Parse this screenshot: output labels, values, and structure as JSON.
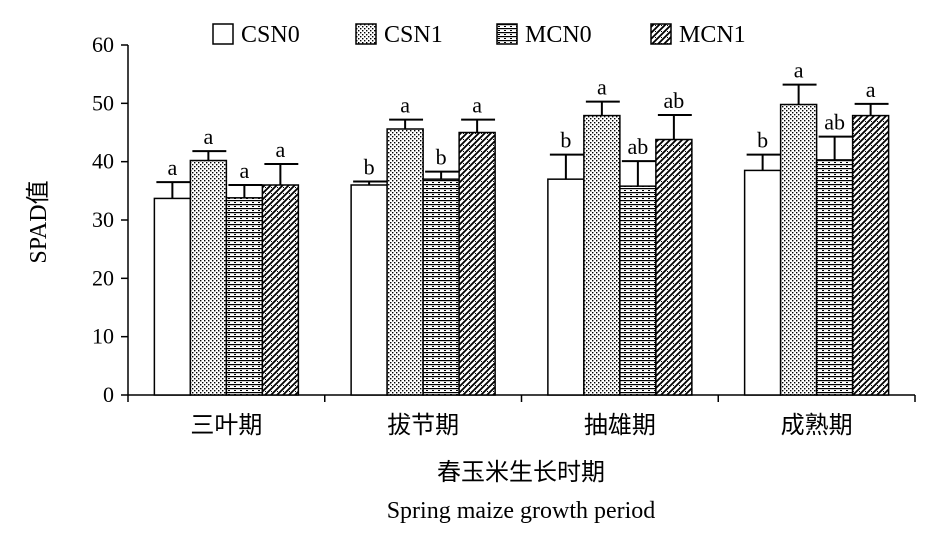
{
  "chart_data": {
    "type": "bar",
    "title": "",
    "ylabel": "SPAD值",
    "xlabel_cn": "春玉米生长时期",
    "xlabel_en": "Spring maize growth period",
    "ylim": [
      0,
      60
    ],
    "yticks": [
      0,
      10,
      20,
      30,
      40,
      50,
      60
    ],
    "categories": [
      "三叶期",
      "拔节期",
      "抽雄期",
      "成熟期"
    ],
    "legend_position": "top",
    "series": [
      {
        "name": "CSN0",
        "pattern": "plain",
        "values": [
          33.7,
          36.0,
          37.0,
          38.5
        ],
        "errors": [
          2.8,
          0.6,
          4.2,
          2.7
        ],
        "labels": [
          "a",
          "b",
          "b",
          "b"
        ]
      },
      {
        "name": "CSN1",
        "pattern": "dots",
        "values": [
          40.2,
          45.6,
          47.9,
          49.8
        ],
        "errors": [
          1.6,
          1.6,
          2.4,
          3.4
        ],
        "labels": [
          "a",
          "a",
          "a",
          "a"
        ]
      },
      {
        "name": "MCN0",
        "pattern": "hlines",
        "values": [
          33.8,
          37.0,
          35.8,
          40.3
        ],
        "errors": [
          2.2,
          1.3,
          4.3,
          4.0
        ],
        "labels": [
          "a",
          "b",
          "ab",
          "ab"
        ]
      },
      {
        "name": "MCN1",
        "pattern": "diag",
        "values": [
          36.0,
          45.0,
          43.8,
          47.9
        ],
        "errors": [
          3.6,
          2.2,
          4.2,
          2.0
        ],
        "labels": [
          "a",
          "a",
          "ab",
          "a"
        ]
      }
    ]
  }
}
